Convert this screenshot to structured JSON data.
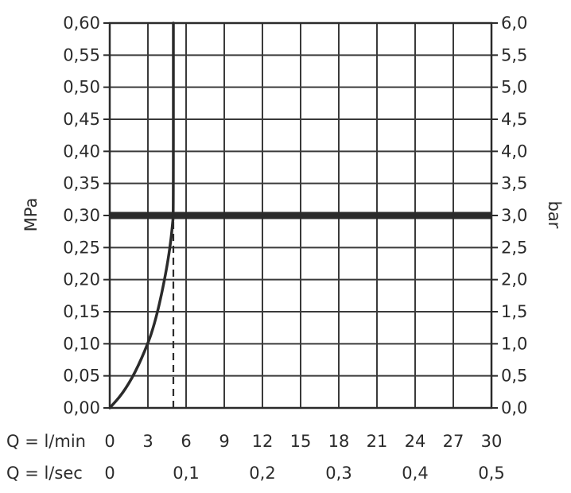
{
  "chart_data": {
    "type": "line",
    "title": "",
    "x_axis": {
      "label_lmin": "Q = l/min",
      "label_lsec": "Q = l/sec",
      "ticks_lmin": [
        "0",
        "3",
        "6",
        "9",
        "12",
        "15",
        "18",
        "21",
        "24",
        "27",
        "30"
      ],
      "ticks_lsec": [
        "0",
        "0,1",
        "0,2",
        "0,3",
        "0,4",
        "0,5"
      ],
      "range_lmin": [
        0,
        30
      ],
      "range_lsec": [
        0,
        0.5
      ]
    },
    "y_axis_left": {
      "label": "MPa",
      "range": [
        0,
        0.6
      ],
      "ticks": [
        "0,00",
        "0,05",
        "0,10",
        "0,15",
        "0,20",
        "0,25",
        "0,30",
        "0,35",
        "0,40",
        "0,45",
        "0,50",
        "0,55",
        "0,60"
      ]
    },
    "y_axis_right": {
      "label": "bar",
      "range": [
        0,
        6
      ],
      "ticks": [
        "0,0",
        "0,5",
        "1,0",
        "1,5",
        "2,0",
        "2,5",
        "3,0",
        "3,5",
        "4,0",
        "4,5",
        "5,0",
        "5,5",
        "6,0"
      ]
    },
    "grid": true,
    "series": [
      {
        "x": [
          0,
          1,
          2,
          3,
          3.5,
          4,
          4.5,
          4.8,
          4.95,
          5.0,
          5.0
        ],
        "y": [
          0,
          0.022,
          0.055,
          0.1,
          0.13,
          0.17,
          0.22,
          0.26,
          0.29,
          0.3,
          0.6
        ]
      }
    ],
    "reference_lines": [
      {
        "orientation": "horizontal",
        "y": 0.3,
        "style": "thick"
      },
      {
        "orientation": "vertical",
        "x": 5.0,
        "y_range": [
          0,
          0.3
        ],
        "style": "dashed"
      }
    ]
  }
}
